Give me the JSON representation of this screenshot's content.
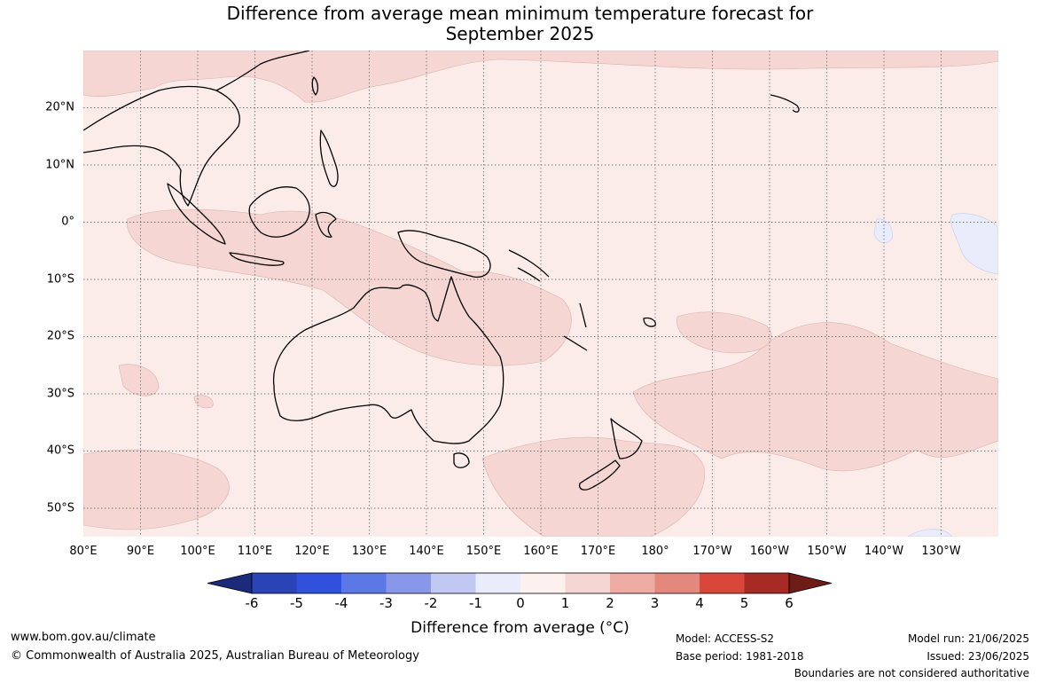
{
  "title": {
    "line1": "Difference from average mean minimum temperature forecast for",
    "line2": "September 2025"
  },
  "map": {
    "lon_labels": [
      "80°E",
      "90°E",
      "100°E",
      "110°E",
      "120°E",
      "130°E",
      "140°E",
      "150°E",
      "160°E",
      "170°E",
      "180°",
      "170°W",
      "160°W",
      "150°W",
      "140°W",
      "130°W"
    ],
    "lat_labels": [
      "20°N",
      "10°N",
      "0°",
      "10°S",
      "20°S",
      "30°S",
      "40°S",
      "50°S"
    ],
    "lon_range": [
      80,
      240
    ],
    "lat_range": [
      -55,
      30
    ],
    "gridlines": "dotted"
  },
  "colorbar": {
    "ticks": [
      "-6",
      "-5",
      "-4",
      "-3",
      "-2",
      "-1",
      "0",
      "1",
      "2",
      "3",
      "4",
      "5",
      "6"
    ],
    "colors": [
      "#1b2a7a",
      "#2a44b8",
      "#3150dd",
      "#5c78e6",
      "#8897ea",
      "#c0c8f3",
      "#e8ecfb",
      "#fdf1ef",
      "#f5d6d3",
      "#edaba4",
      "#e4877d",
      "#d9473b",
      "#a82a24",
      "#6e1c18"
    ],
    "label": "Difference from average (°C)"
  },
  "footer": {
    "website": "www.bom.gov.au/climate",
    "copyright": "© Commonwealth of Australia 2025, Australian Bureau of Meteorology",
    "model": "Model: ACCESS-S2",
    "base_period": "Base period: 1981-2018",
    "model_run": "Model run: 21/06/2025",
    "issued": "Issued: 23/06/2025",
    "disclaimer": "Boundaries are not considered authoritative"
  }
}
